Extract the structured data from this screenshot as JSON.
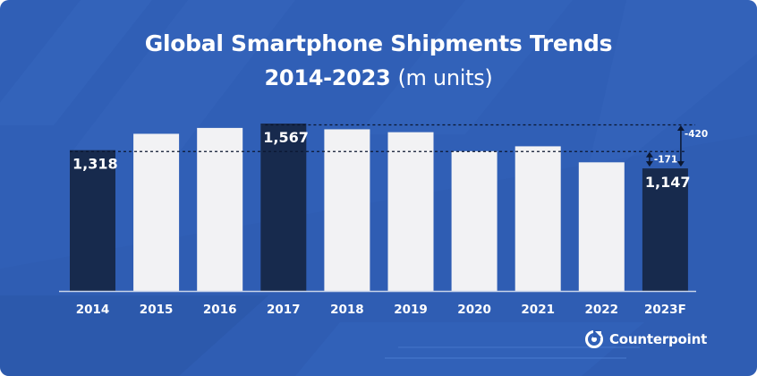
{
  "title": {
    "line1": "Global Smartphone Shipments Trends",
    "line2": "2014-2023",
    "unit": "(m units)"
  },
  "brand": {
    "name": "Counterpoint",
    "icon": "counterpoint-logo-icon"
  },
  "colors": {
    "background": "#2f5db3",
    "bar_light": "#f2f2f4",
    "bar_dark": "#172a4d",
    "text": "#ffffff"
  },
  "chart_data": {
    "type": "bar",
    "categories": [
      "2014",
      "2015",
      "2016",
      "2017",
      "2018",
      "2019",
      "2020",
      "2021",
      "2022",
      "2023F"
    ],
    "values": [
      1318,
      1471,
      1526,
      1567,
      1513,
      1486,
      1309,
      1354,
      1204,
      1147
    ],
    "highlighted": [
      "2014",
      "2017",
      "2023F"
    ],
    "data_labels": [
      {
        "category": "2014",
        "text": "1,318"
      },
      {
        "category": "2017",
        "text": "1,567"
      },
      {
        "category": "2023F",
        "text": "1,147"
      }
    ],
    "annotations": [
      {
        "from": "2014",
        "to": "2023F",
        "text": "-171"
      },
      {
        "from": "2017",
        "to": "2023F",
        "text": "-420"
      }
    ],
    "ylim": [
      0,
      1567
    ],
    "grid": false,
    "legend": "none"
  }
}
